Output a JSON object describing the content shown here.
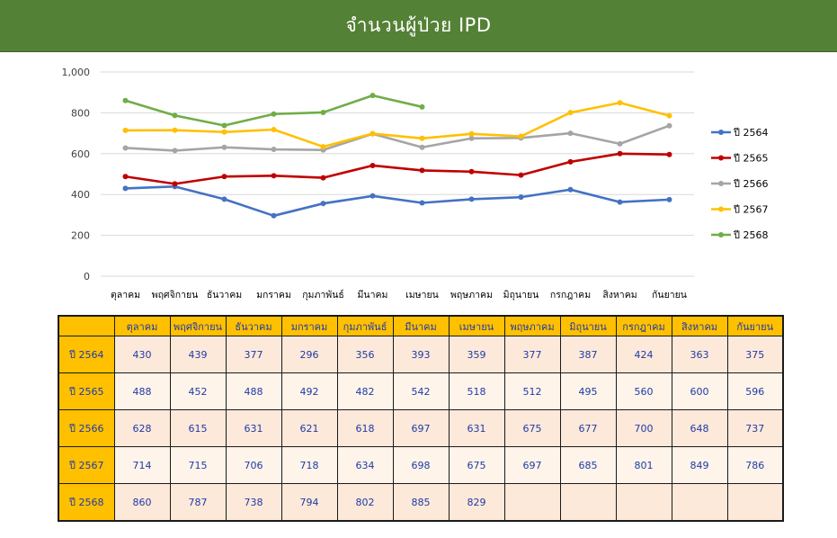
{
  "chart_data": {
    "type": "line",
    "title": "จำนวนผู้ป่วย IPD",
    "categories": [
      "ตุลาคม",
      "พฤศจิกายน",
      "ธันวาคม",
      "มกราคม",
      "กุมภาพันธ์",
      "มีนาคม",
      "เมษายน",
      "พฤษภาคม",
      "มิถุนายน",
      "กรกฎาคม",
      "สิงหาคม",
      "กันยายน"
    ],
    "y_ticks": [
      "0",
      "200",
      "400",
      "600",
      "800",
      "1,000"
    ],
    "ylim": [
      0,
      1000
    ],
    "grid": true,
    "legend_position": "right",
    "series": [
      {
        "name": "ปี 2564",
        "color": "#4472c4",
        "values": [
          430,
          439,
          377,
          296,
          356,
          393,
          359,
          377,
          387,
          424,
          363,
          375
        ]
      },
      {
        "name": "ปี 2565",
        "color": "#c00000",
        "values": [
          488,
          452,
          488,
          492,
          482,
          542,
          518,
          512,
          495,
          560,
          600,
          596
        ]
      },
      {
        "name": "ปี 2566",
        "color": "#a5a5a5",
        "values": [
          628,
          615,
          631,
          621,
          618,
          697,
          631,
          675,
          677,
          700,
          648,
          737
        ]
      },
      {
        "name": "ปี 2567",
        "color": "#ffc000",
        "values": [
          714,
          715,
          706,
          718,
          634,
          698,
          675,
          697,
          685,
          801,
          849,
          786
        ]
      },
      {
        "name": "ปี 2568",
        "color": "#70ad47",
        "values": [
          860,
          787,
          738,
          794,
          802,
          885,
          829,
          null,
          null,
          null,
          null,
          null
        ]
      }
    ]
  },
  "table": {
    "headers": [
      "ตุลาคม",
      "พฤศจิกายน",
      "ธันวาคม",
      "มกราคม",
      "กุมภาพันธ์",
      "มีนาคม",
      "เมษายน",
      "พฤษภาคม",
      "มิถุนายน",
      "กรกฎาคม",
      "สิงหาคม",
      "กันยายน"
    ],
    "rows": [
      {
        "label": "ปี 2564",
        "cells": [
          "430",
          "439",
          "377",
          "296",
          "356",
          "393",
          "359",
          "377",
          "387",
          "424",
          "363",
          "375"
        ]
      },
      {
        "label": "ปี 2565",
        "cells": [
          "488",
          "452",
          "488",
          "492",
          "482",
          "542",
          "518",
          "512",
          "495",
          "560",
          "600",
          "596"
        ]
      },
      {
        "label": "ปี 2566",
        "cells": [
          "628",
          "615",
          "631",
          "621",
          "618",
          "697",
          "631",
          "675",
          "677",
          "700",
          "648",
          "737"
        ]
      },
      {
        "label": "ปี 2567",
        "cells": [
          "714",
          "715",
          "706",
          "718",
          "634",
          "698",
          "675",
          "697",
          "685",
          "801",
          "849",
          "786"
        ]
      },
      {
        "label": "ปี 2568",
        "cells": [
          "860",
          "787",
          "738",
          "794",
          "802",
          "885",
          "829",
          "",
          "",
          "",
          "",
          ""
        ]
      }
    ]
  }
}
